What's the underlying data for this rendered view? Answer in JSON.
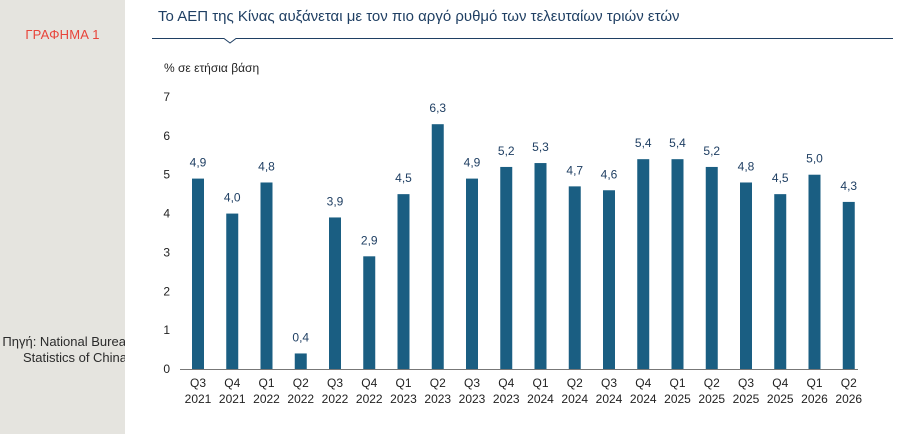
{
  "figure_label": "ΓΡΑΦΗΜΑ 1",
  "source": "Πηγή: National Bureau of Statistics of China",
  "colors": {
    "bar": "#1a5e82",
    "title": "#1f3f63",
    "label_red": "#e8443a",
    "axis": "#666666"
  },
  "chart_data": {
    "type": "bar",
    "title": "Το ΑΕΠ της Κίνας αυξάνεται με τον πιο αργό ρυθμό των τελευταίων τριών ετών",
    "ylabel": "% σε ετήσια βάση",
    "ylim": [
      0,
      7
    ],
    "yticks": [
      "0",
      "1",
      "2",
      "3",
      "4",
      "5",
      "6",
      "7"
    ],
    "grid": false,
    "categories": [
      [
        "Q3",
        "2021"
      ],
      [
        "Q4",
        "2021"
      ],
      [
        "Q1",
        "2022"
      ],
      [
        "Q2",
        "2022"
      ],
      [
        "Q3",
        "2022"
      ],
      [
        "Q4",
        "2022"
      ],
      [
        "Q1",
        "2023"
      ],
      [
        "Q2",
        "2023"
      ],
      [
        "Q3",
        "2023"
      ],
      [
        "Q4",
        "2023"
      ],
      [
        "Q1",
        "2024"
      ],
      [
        "Q2",
        "2024"
      ],
      [
        "Q3",
        "2024"
      ],
      [
        "Q4",
        "2024"
      ],
      [
        "Q1",
        "2025"
      ],
      [
        "Q2",
        "2025"
      ],
      [
        "Q3",
        "2025"
      ],
      [
        "Q4",
        "2025"
      ],
      [
        "Q1",
        "2026"
      ],
      [
        "Q2",
        "2026"
      ]
    ],
    "values": [
      4.9,
      4.0,
      4.8,
      0.4,
      3.9,
      2.9,
      4.5,
      6.3,
      4.9,
      5.2,
      5.3,
      4.7,
      4.6,
      5.4,
      5.4,
      5.2,
      4.8,
      4.5,
      5.0,
      4.3
    ],
    "value_labels": [
      "4,9",
      "4,0",
      "4,8",
      "0,4",
      "3,9",
      "2,9",
      "4,5",
      "6,3",
      "4,9",
      "5,2",
      "5,3",
      "4,7",
      "4,6",
      "5,4",
      "5,4",
      "5,2",
      "4,8",
      "4,5",
      "5,0",
      "4,3"
    ]
  }
}
